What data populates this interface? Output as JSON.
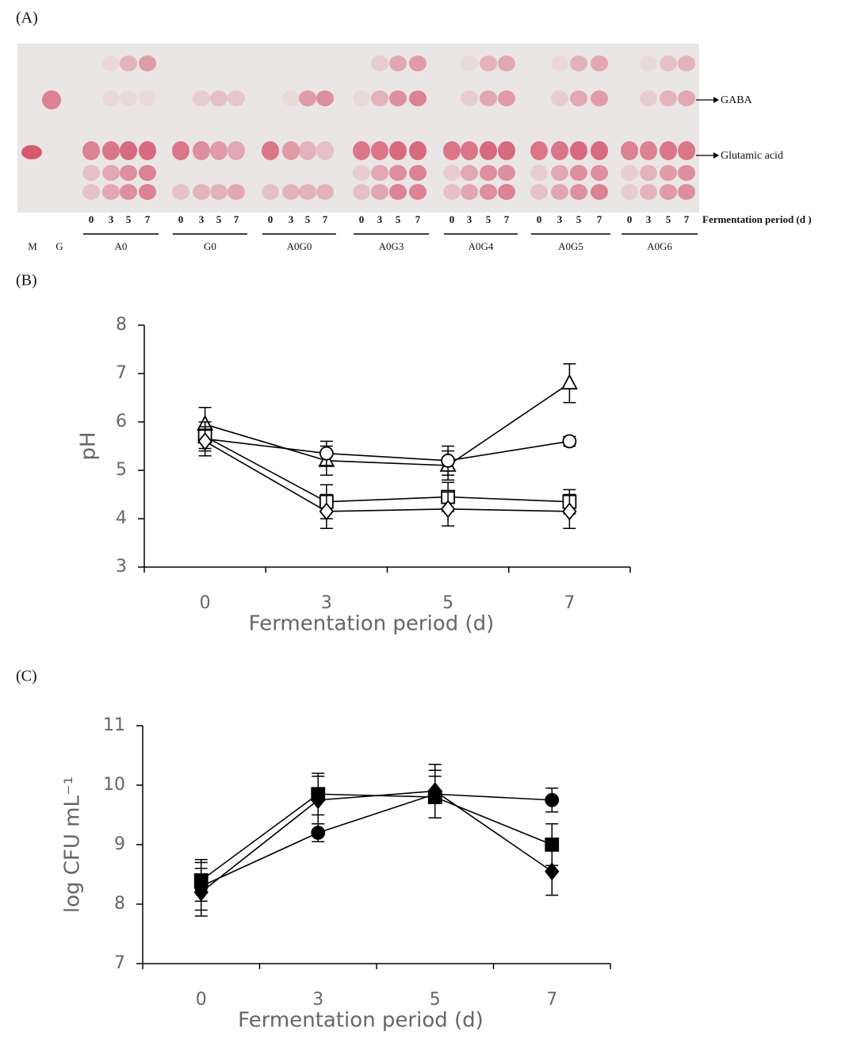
{
  "panel_a": {
    "label": "(A)",
    "days": [
      "0",
      "3",
      "5",
      "7"
    ],
    "days_caption": "Fermentation period (d )",
    "lanes": [
      "M",
      "G"
    ],
    "groups": [
      "A0",
      "G0",
      "A0G0",
      "A0G3",
      "A0G4",
      "A0G5",
      "A0G6"
    ],
    "markers": [
      "GABA",
      "Glutamic acid"
    ]
  },
  "chart_data": [
    {
      "type": "line",
      "panel_label": "(B)",
      "x_label": "Fermentation period  (d)",
      "y_label": "pH",
      "categories": [
        "0",
        "3",
        "5",
        "7"
      ],
      "ylim": [
        3,
        8
      ],
      "yticks": [
        3,
        4,
        5,
        6,
        7,
        8
      ],
      "series": [
        {
          "marker": "triangle",
          "fill": "#ffffff",
          "color": "#000000",
          "values": [
            5.95,
            5.2,
            5.1,
            6.8
          ],
          "errors": [
            0.35,
            0.3,
            0.3,
            0.4
          ]
        },
        {
          "marker": "circle",
          "fill": "#ffffff",
          "color": "#000000",
          "values": [
            5.65,
            5.35,
            5.2,
            5.6
          ],
          "errors": [
            0.2,
            0.25,
            0.3,
            0.1
          ]
        },
        {
          "marker": "square",
          "fill": "#ffffff",
          "color": "#000000",
          "values": [
            5.7,
            4.35,
            4.45,
            4.35
          ],
          "errors": [
            0.3,
            0.35,
            0.3,
            0.25
          ]
        },
        {
          "marker": "diamond",
          "fill": "#ffffff",
          "color": "#000000",
          "values": [
            5.6,
            4.15,
            4.2,
            4.15
          ],
          "errors": [
            0.3,
            0.35,
            0.35,
            0.35
          ]
        }
      ]
    },
    {
      "type": "line",
      "panel_label": "(C)",
      "x_label": "Fermentation period  (d)",
      "y_label": "log CFU mL⁻¹",
      "categories": [
        "0",
        "3",
        "5",
        "7"
      ],
      "ylim": [
        7,
        11
      ],
      "yticks": [
        7,
        8,
        9,
        10,
        11
      ],
      "series": [
        {
          "marker": "circle",
          "fill": "#000000",
          "color": "#000000",
          "values": [
            8.3,
            9.2,
            9.85,
            9.75
          ],
          "errors": [
            0.4,
            0.15,
            0.4,
            0.2
          ]
        },
        {
          "marker": "square",
          "fill": "#000000",
          "color": "#000000",
          "values": [
            8.4,
            9.85,
            9.8,
            9.0
          ],
          "errors": [
            0.35,
            0.35,
            0.35,
            0.35
          ]
        },
        {
          "marker": "diamond",
          "fill": "#000000",
          "color": "#000000",
          "values": [
            8.2,
            9.75,
            9.9,
            8.55
          ],
          "errors": [
            0.4,
            0.4,
            0.45,
            0.4
          ]
        }
      ]
    }
  ]
}
